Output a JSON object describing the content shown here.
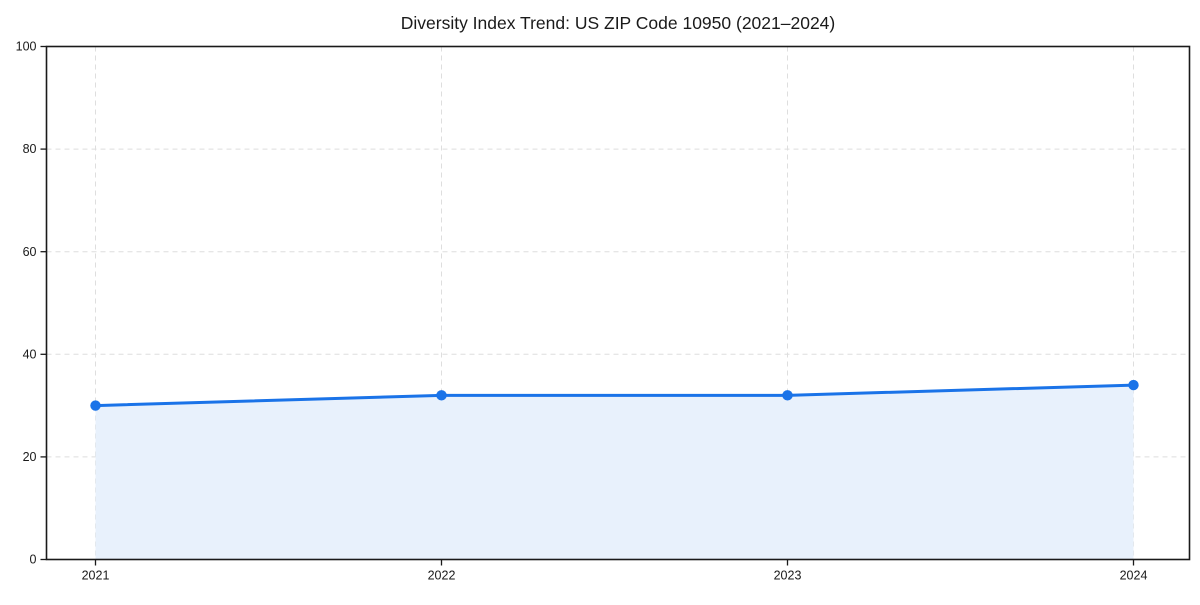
{
  "chart_data": {
    "type": "line",
    "title": "Diversity Index Trend: US ZIP Code 10950 (2021–2024)",
    "x": [
      "2021",
      "2022",
      "2023",
      "2024"
    ],
    "values": [
      30,
      32,
      32,
      34
    ],
    "xlabel": "",
    "ylabel": "",
    "ylim": [
      0,
      100
    ],
    "yticks": [
      0,
      20,
      40,
      60,
      80,
      100
    ],
    "grid": "dashed-both-axes",
    "legend": "none",
    "area_fill": true,
    "markers": true,
    "colors": {
      "line": "#1a73e8",
      "marker": "#1a73e8",
      "area_fill": "#e8f1fc",
      "gridline": "#dedede",
      "spine": "#1a1a1a",
      "tick": "#1a1a1a",
      "text": "#1a1a1a",
      "background": "#ffffff"
    }
  }
}
